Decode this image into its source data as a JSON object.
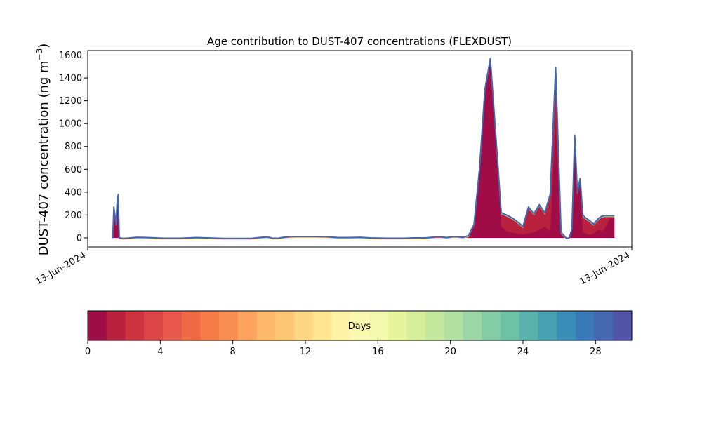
{
  "chart_data": {
    "type": "area",
    "title": "Age contribution to DUST-407 concentrations (FLEXDUST)",
    "ylabel_main": "DUST-407 concentration (ng m",
    "ylabel_sup": "−3",
    "ylabel_close": ")",
    "xlabel": "",
    "x_ticks": [
      "13-Jun-2024",
      "13-Jun-2024"
    ],
    "ylim": [
      -80,
      1640
    ],
    "y_ticks": [
      0,
      200,
      400,
      600,
      800,
      1000,
      1200,
      1400,
      1600
    ],
    "xlim": [
      0,
      100
    ],
    "series": [
      {
        "role": "total",
        "x": [
          4.6,
          4.8,
          5.0,
          5.2,
          5.4,
          5.6,
          5.8,
          6.5,
          7.5,
          9,
          11,
          14,
          17,
          20,
          25,
          30,
          32,
          33,
          34,
          35,
          36,
          37,
          38,
          40,
          42,
          44,
          46,
          48,
          50,
          52,
          55,
          58,
          60,
          62,
          64,
          65,
          66,
          67,
          68,
          69,
          70,
          71,
          72,
          73,
          74,
          75,
          76,
          77,
          78,
          79,
          80,
          81,
          82,
          83,
          84,
          85,
          86,
          87,
          88,
          88.5,
          89,
          89.5,
          90,
          90.5,
          91,
          91.5,
          92,
          92.5,
          93,
          93.5,
          94,
          94.5,
          95,
          96,
          96.8
        ],
        "y": [
          0,
          270,
          200,
          120,
          310,
          380,
          0,
          -5,
          -2,
          5,
          3,
          -3,
          -3,
          3,
          -5,
          -5,
          5,
          8,
          -3,
          -3,
          5,
          10,
          12,
          12,
          12,
          10,
          3,
          3,
          5,
          0,
          -3,
          -3,
          0,
          0,
          8,
          8,
          3,
          10,
          10,
          5,
          20,
          120,
          600,
          1300,
          1570,
          900,
          220,
          200,
          175,
          140,
          100,
          270,
          210,
          290,
          220,
          380,
          1490,
          50,
          -5,
          0,
          80,
          900,
          400,
          520,
          200,
          175,
          160,
          140,
          120,
          150,
          175,
          190,
          195,
          195,
          195
        ]
      },
      {
        "role": "youngest-age",
        "x": [
          4.6,
          4.8,
          5.0,
          5.2,
          5.4,
          5.6,
          5.8,
          70,
          71,
          72,
          73,
          74,
          75,
          76,
          77,
          78,
          79,
          80,
          81,
          82,
          83,
          84,
          85,
          86,
          87,
          88,
          88.5,
          89,
          89.5,
          90,
          90.5,
          91,
          91.5,
          92,
          92.5,
          93,
          93.5,
          94,
          94.5,
          95,
          96,
          96.8
        ],
        "y": [
          0,
          250,
          180,
          100,
          290,
          360,
          0,
          0,
          110,
          580,
          1280,
          1540,
          880,
          100,
          60,
          45,
          35,
          30,
          40,
          50,
          60,
          50,
          40,
          1000,
          20,
          0,
          0,
          60,
          850,
          350,
          480,
          50,
          40,
          30,
          30,
          40,
          60,
          70,
          60,
          80,
          170,
          175
        ]
      },
      {
        "role": "older-age",
        "x": [
          70,
          71,
          72,
          73,
          74,
          75,
          76,
          77,
          78,
          79,
          80,
          81,
          82,
          83,
          84,
          85,
          86,
          87,
          88,
          89,
          90,
          91,
          92,
          93,
          94,
          95,
          96,
          96.8
        ],
        "y": [
          0,
          0,
          0,
          0,
          0,
          0,
          80,
          60,
          45,
          35,
          30,
          40,
          50,
          70,
          100,
          60,
          40,
          20,
          0,
          0,
          0,
          0,
          10,
          20,
          30,
          40,
          30,
          0
        ]
      }
    ]
  },
  "colorbar": {
    "label": "Days",
    "range": [
      0,
      30
    ],
    "ticks": [
      "0",
      "4",
      "8",
      "12",
      "16",
      "20",
      "24",
      "28"
    ],
    "colors": [
      "#a00c46",
      "#b9223f",
      "#cc333e",
      "#dc4547",
      "#e7584a",
      "#f06a43",
      "#f67d4a",
      "#f88e52",
      "#fba35f",
      "#fdb76a",
      "#fdc675",
      "#fed785",
      "#fee592",
      "#fef2a7",
      "#fbf8b0",
      "#f3faad",
      "#e6f59c",
      "#d6ee9a",
      "#c4e89e",
      "#b2dfa2",
      "#9cd6a5",
      "#83cca5",
      "#6dc2a5",
      "#59b1ab",
      "#47a0b2",
      "#398db7",
      "#3a79b7",
      "#4467b0",
      "#5254a7"
    ],
    "area_dark": "#a00c46",
    "area_mid": "#b9223f",
    "outline": "#4467b0"
  }
}
